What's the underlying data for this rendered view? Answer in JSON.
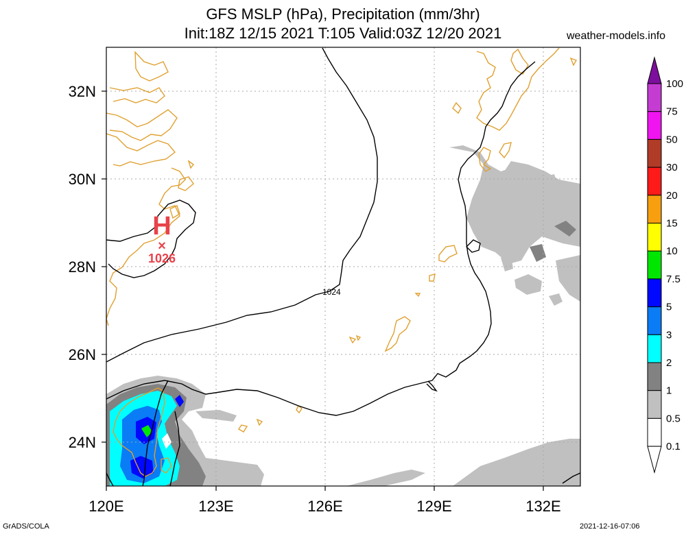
{
  "header": {
    "title_line1": "GFS MSLP (hPa), Precipitation (mm/3hr)",
    "title_line2": "Init:18Z 12/15 2021 T:105 Valid:03Z 12/20 2021",
    "site": "weather-models.info"
  },
  "footer": {
    "credit": "GrADS/COLA",
    "timestamp": "2021-12-16-07:06"
  },
  "map": {
    "lat_labels": [
      "32N",
      "30N",
      "28N",
      "26N",
      "24N"
    ],
    "lon_labels": [
      "120E",
      "123E",
      "126E",
      "129E",
      "132E"
    ],
    "lat_values": [
      32,
      30,
      28,
      26,
      24
    ],
    "lon_values": [
      120,
      123,
      126,
      129,
      132
    ],
    "extent": {
      "lon_min": 120,
      "lon_max": 133,
      "lat_min": 23,
      "lat_max": 33
    },
    "isobar_label": "1024",
    "high": {
      "symbol": "H",
      "marker": "×",
      "pressure": "1026",
      "color": "#e8424a"
    },
    "coastline_color": "#e0a030",
    "isobar_color": "#000000"
  },
  "legend": {
    "levels": [
      "100",
      "75",
      "50",
      "30",
      "20",
      "15",
      "10",
      "7.5",
      "5",
      "3",
      "2",
      "1",
      "0.5",
      "0.1"
    ],
    "colors": [
      "#7e0f9e",
      "#c43cd2",
      "#f014f0",
      "#b03c28",
      "#ff1a1a",
      "#f79f0f",
      "#ffff00",
      "#00e600",
      "#0008ff",
      "#0a7cf5",
      "#00ffff",
      "#828282",
      "#c0c0c0",
      "#ffffff"
    ]
  }
}
